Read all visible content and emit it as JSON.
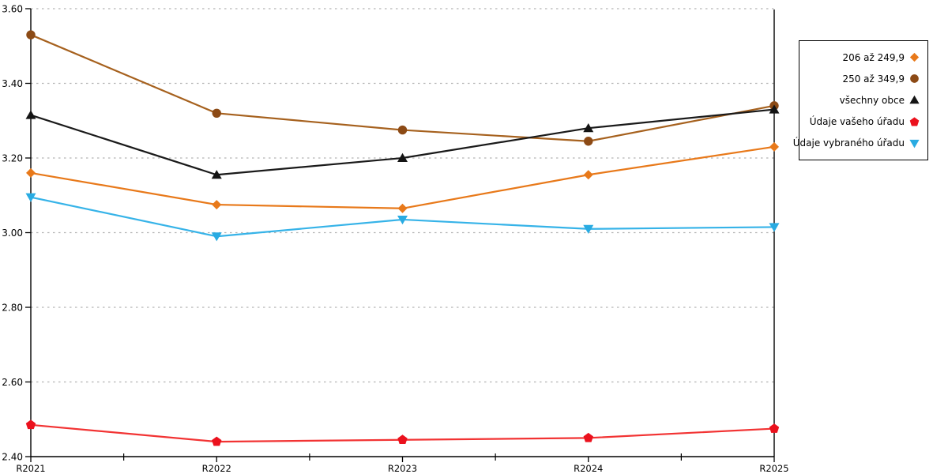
{
  "chart_data": {
    "type": "line",
    "categories": [
      "R2021",
      "R2022",
      "R2023",
      "R2024",
      "R2025"
    ],
    "series": [
      {
        "name": "206 až 249,9",
        "marker": "diamond",
        "color": "#E8791A",
        "line_color": "#E8791A",
        "values": [
          3.16,
          3.075,
          3.065,
          3.155,
          3.23
        ]
      },
      {
        "name": "250 až 349,9",
        "marker": "circle",
        "color": "#8C4A15",
        "line_color": "#A6611E",
        "values": [
          3.53,
          3.32,
          3.275,
          3.245,
          3.34
        ]
      },
      {
        "name": "všechny obce",
        "marker": "triangle-up",
        "color": "#141414",
        "line_color": "#1A1A1A",
        "values": [
          3.315,
          3.155,
          3.2,
          3.28,
          3.33
        ]
      },
      {
        "name": "Údaje vašeho úřadu",
        "marker": "pentagon",
        "color": "#EB111D",
        "line_color": "#F23333",
        "values": [
          2.485,
          2.44,
          2.445,
          2.45,
          2.475
        ]
      },
      {
        "name": "Údaje vybraného úřadu",
        "marker": "triangle-down",
        "color": "#29ABE2",
        "line_color": "#36B3E8",
        "values": [
          3.095,
          2.99,
          3.035,
          3.01,
          3.015
        ]
      }
    ],
    "ylim": [
      2.4,
      3.6
    ],
    "y_ticks": [
      {
        "label": "3.60",
        "value": 3.6
      },
      {
        "label": "3.40",
        "value": 3.4
      },
      {
        "label": "3.20",
        "value": 3.2
      },
      {
        "label": "3.00",
        "value": 3.0
      },
      {
        "label": "2.80",
        "value": 2.8
      },
      {
        "label": "2.60",
        "value": 2.6
      },
      {
        "label": "2.40",
        "value": 2.4
      }
    ],
    "gridline_values": [
      3.6,
      3.4,
      3.2,
      3.0,
      2.8,
      2.6
    ],
    "grid": "horizontal-dotted",
    "grid_color": "#b3b3b3",
    "axis_color": "#000000",
    "background": "#ffffff",
    "legend_position": "outside-top-right",
    "minor_x_ticks": "between-categories",
    "xlabel": "",
    "ylabel": "",
    "title": ""
  }
}
